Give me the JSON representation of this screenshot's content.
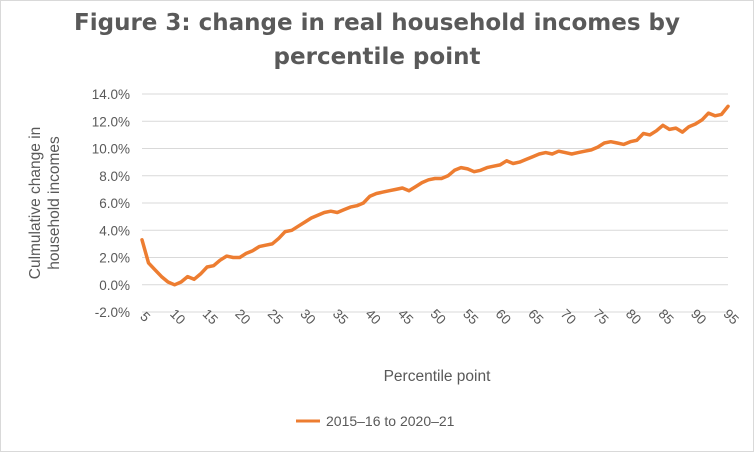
{
  "chart_data": {
    "type": "line",
    "title_line1": "Figure 3:  change in real household incomes by",
    "title_line2": "percentile point",
    "xlabel": "Percentile point",
    "ylabel_line1": "Culmulative change in",
    "ylabel_line2": "household incomes",
    "ylim": [
      -0.02,
      0.14
    ],
    "ytick_values": [
      -0.02,
      0.0,
      0.02,
      0.04,
      0.06,
      0.08,
      0.1,
      0.12,
      0.14
    ],
    "ytick_labels": [
      "-2.0%",
      "0.0%",
      "2.0%",
      "4.0%",
      "6.0%",
      "8.0%",
      "10.0%",
      "12.0%",
      "14.0%"
    ],
    "xlim": [
      5,
      95
    ],
    "xticks": [
      "5",
      "10",
      "15",
      "20",
      "25",
      "30",
      "35",
      "40",
      "45",
      "50",
      "55",
      "60",
      "65",
      "70",
      "75",
      "80",
      "85",
      "90",
      "95"
    ],
    "grid": true,
    "legend_position": "bottom",
    "series": [
      {
        "name": "2015–16 to 2020–21",
        "color": "#ED7D31",
        "x": [
          5,
          6,
          7,
          8,
          9,
          10,
          11,
          12,
          13,
          14,
          15,
          16,
          17,
          18,
          19,
          20,
          21,
          22,
          23,
          24,
          25,
          26,
          27,
          28,
          29,
          30,
          31,
          32,
          33,
          34,
          35,
          36,
          37,
          38,
          39,
          40,
          41,
          42,
          43,
          44,
          45,
          46,
          47,
          48,
          49,
          50,
          51,
          52,
          53,
          54,
          55,
          56,
          57,
          58,
          59,
          60,
          61,
          62,
          63,
          64,
          65,
          66,
          67,
          68,
          69,
          70,
          71,
          72,
          73,
          74,
          75,
          76,
          77,
          78,
          79,
          80,
          81,
          82,
          83,
          84,
          85,
          86,
          87,
          88,
          89,
          90,
          91,
          92,
          93,
          94,
          95
        ],
        "values": [
          0.033,
          0.016,
          0.011,
          0.006,
          0.002,
          0.0,
          0.002,
          0.006,
          0.004,
          0.008,
          0.013,
          0.014,
          0.018,
          0.021,
          0.02,
          0.02,
          0.023,
          0.025,
          0.028,
          0.029,
          0.03,
          0.034,
          0.039,
          0.04,
          0.043,
          0.046,
          0.049,
          0.051,
          0.053,
          0.054,
          0.053,
          0.055,
          0.057,
          0.058,
          0.06,
          0.065,
          0.067,
          0.068,
          0.069,
          0.07,
          0.071,
          0.069,
          0.072,
          0.075,
          0.077,
          0.078,
          0.078,
          0.08,
          0.084,
          0.086,
          0.085,
          0.083,
          0.084,
          0.086,
          0.087,
          0.088,
          0.091,
          0.089,
          0.09,
          0.092,
          0.094,
          0.096,
          0.097,
          0.096,
          0.098,
          0.097,
          0.096,
          0.097,
          0.098,
          0.099,
          0.101,
          0.104,
          0.105,
          0.104,
          0.103,
          0.105,
          0.106,
          0.111,
          0.11,
          0.113,
          0.117,
          0.114,
          0.115,
          0.112,
          0.116,
          0.118,
          0.121,
          0.126,
          0.124,
          0.125,
          0.131
        ]
      }
    ]
  }
}
